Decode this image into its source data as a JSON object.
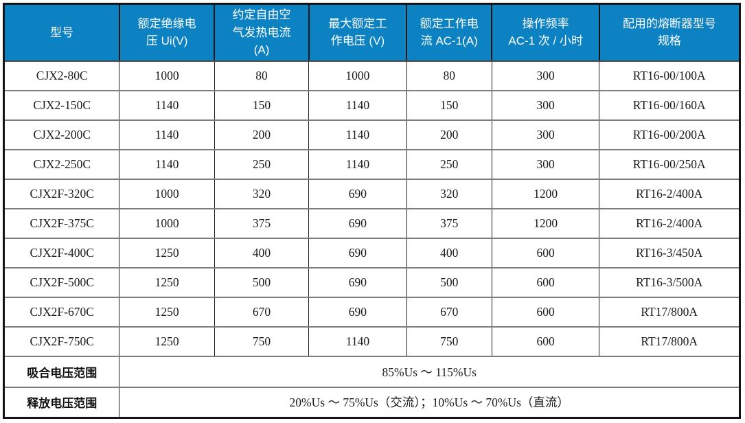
{
  "table": {
    "headers": [
      "型号",
      "额定绝缘电\n压 Ui(V)",
      "约定自由空\n气发热电流\n(A)",
      "最大额定工\n作电压 (V)",
      "额定工作电\n流 AC-1(A)",
      "操作频率\nAC-1 次 / 小时",
      "配用的熔断器型号\n规格"
    ],
    "rows": [
      [
        "CJX2-80C",
        "1000",
        "80",
        "1000",
        "80",
        "300",
        "RT16-00/100A"
      ],
      [
        "CJX2-150C",
        "1140",
        "150",
        "1140",
        "150",
        "300",
        "RT16-00/160A"
      ],
      [
        "CJX2-200C",
        "1140",
        "200",
        "1140",
        "200",
        "300",
        "RT16-00/200A"
      ],
      [
        "CJX2-250C",
        "1140",
        "250",
        "1140",
        "250",
        "300",
        "RT16-00/250A"
      ],
      [
        "CJX2F-320C",
        "1000",
        "320",
        "690",
        "320",
        "1200",
        "RT16-2/400A"
      ],
      [
        "CJX2F-375C",
        "1000",
        "375",
        "690",
        "375",
        "1200",
        "RT16-2/400A"
      ],
      [
        "CJX2F-400C",
        "1250",
        "400",
        "690",
        "400",
        "600",
        "RT16-3/450A"
      ],
      [
        "CJX2F-500C",
        "1250",
        "500",
        "690",
        "500",
        "600",
        "RT16-3/500A"
      ],
      [
        "CJX2F-670C",
        "1250",
        "670",
        "690",
        "670",
        "600",
        "RT17/800A"
      ],
      [
        "CJX2F-750C",
        "1250",
        "750",
        "1140",
        "750",
        "600",
        "RT17/800A"
      ]
    ],
    "footer_rows": [
      {
        "label": "吸合电压范围",
        "value": "85%Us ～ 115%Us"
      },
      {
        "label": "释放电压范围",
        "value": "20%Us ～ 75%Us（交流）；10%Us ～ 70%Us（直流）"
      }
    ],
    "colors": {
      "header_bg": "#0c82c3",
      "header_text": "#ffffff",
      "horizontal_border": "#7d7d7d",
      "vertical_border": "#1b1b1b",
      "outer_border": "#141414"
    }
  }
}
